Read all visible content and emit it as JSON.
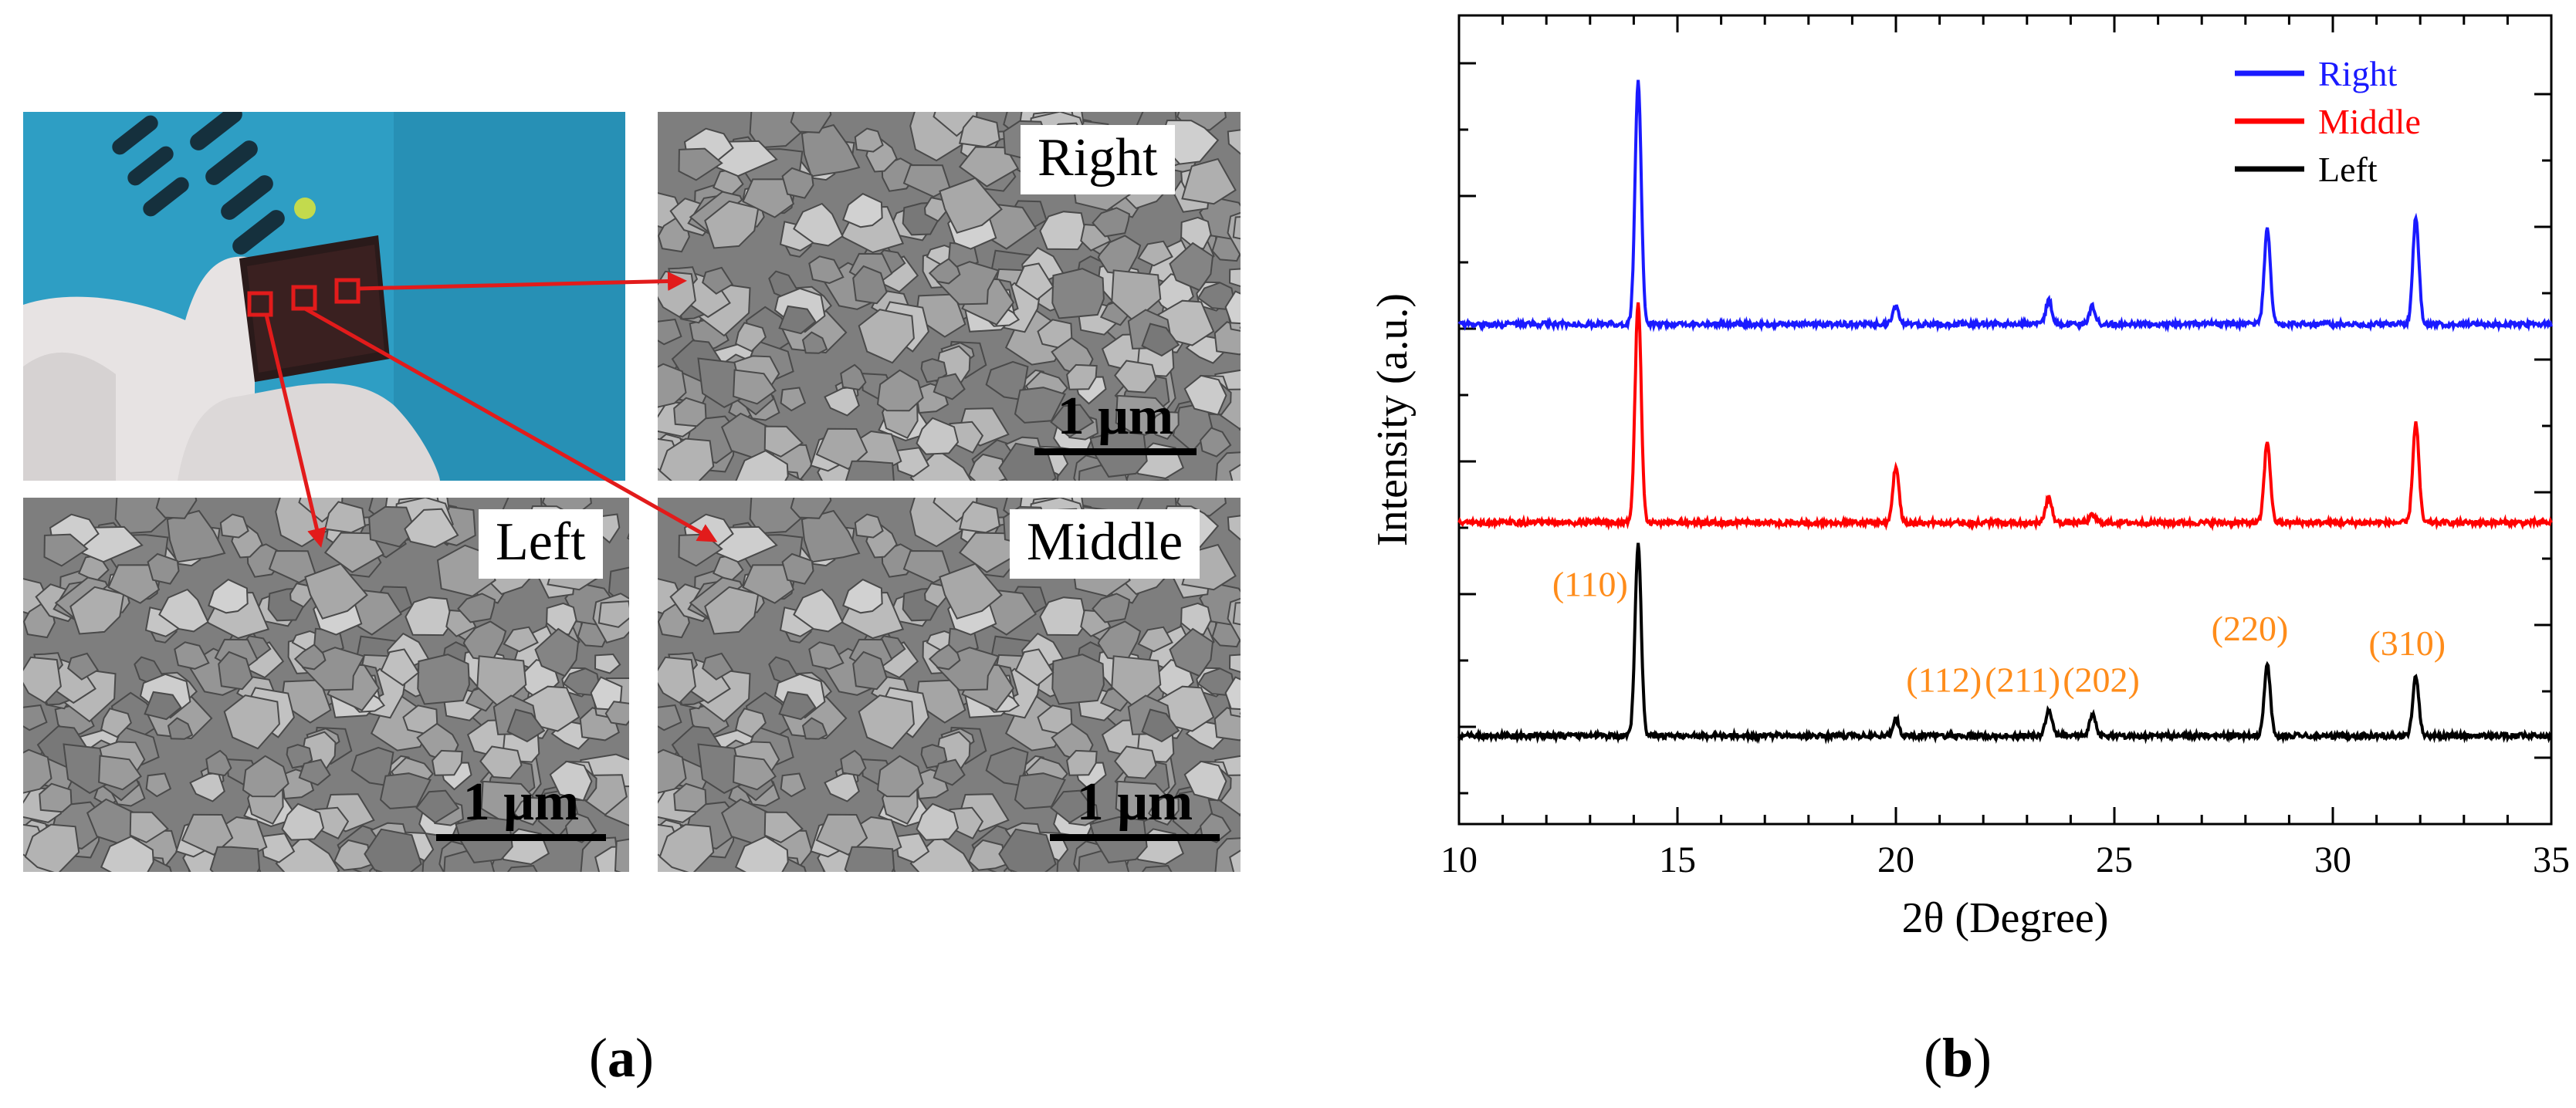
{
  "panel_a": {
    "caption_letter": "a",
    "sem_images": [
      {
        "label": "Right",
        "scale_label": "1 μm"
      },
      {
        "label": "Left",
        "scale_label": "1 μm"
      },
      {
        "label": "Middle",
        "scale_label": "1 μm"
      }
    ],
    "colors": {
      "arrow": "#e21b1b",
      "photo_bg": "#2e9ec4"
    }
  },
  "panel_b": {
    "caption_letter": "b"
  },
  "chart_data": {
    "type": "line",
    "xlabel": "2θ (Degree)",
    "ylabel": "Intensity (a.u.)",
    "xlim": [
      10,
      35
    ],
    "xticks": [
      10,
      15,
      20,
      25,
      30,
      35
    ],
    "legend_position": "top-right",
    "series": [
      {
        "name": "Right",
        "color": "#1a1aff",
        "baseline": 2.8,
        "peaks": [
          [
            14.1,
            1.65
          ],
          [
            20.0,
            0.12
          ],
          [
            23.5,
            0.16
          ],
          [
            24.5,
            0.12
          ],
          [
            28.5,
            0.65
          ],
          [
            31.9,
            0.72
          ]
        ]
      },
      {
        "name": "Middle",
        "color": "#ff0000",
        "baseline": 1.45,
        "peaks": [
          [
            14.1,
            1.5
          ],
          [
            20.0,
            0.38
          ],
          [
            23.5,
            0.17
          ],
          [
            24.5,
            0.05
          ],
          [
            28.5,
            0.55
          ],
          [
            31.9,
            0.68
          ]
        ]
      },
      {
        "name": "Left",
        "color": "#000000",
        "baseline": 0.0,
        "peaks": [
          [
            14.1,
            1.3
          ],
          [
            20.0,
            0.12
          ],
          [
            23.5,
            0.18
          ],
          [
            24.5,
            0.15
          ],
          [
            28.5,
            0.48
          ],
          [
            31.9,
            0.4
          ]
        ]
      }
    ],
    "annotations": [
      {
        "text": "(110)",
        "x": 13.0,
        "y": 0.95
      },
      {
        "text": "(112)",
        "x": 21.1,
        "y": 0.3
      },
      {
        "text": "(211)",
        "x": 22.9,
        "y": 0.3
      },
      {
        "text": "(202)",
        "x": 24.7,
        "y": 0.3
      },
      {
        "text": "(220)",
        "x": 28.1,
        "y": 0.65
      },
      {
        "text": "(310)",
        "x": 31.7,
        "y": 0.55
      }
    ],
    "annotation_color": "#ff8c1a"
  }
}
